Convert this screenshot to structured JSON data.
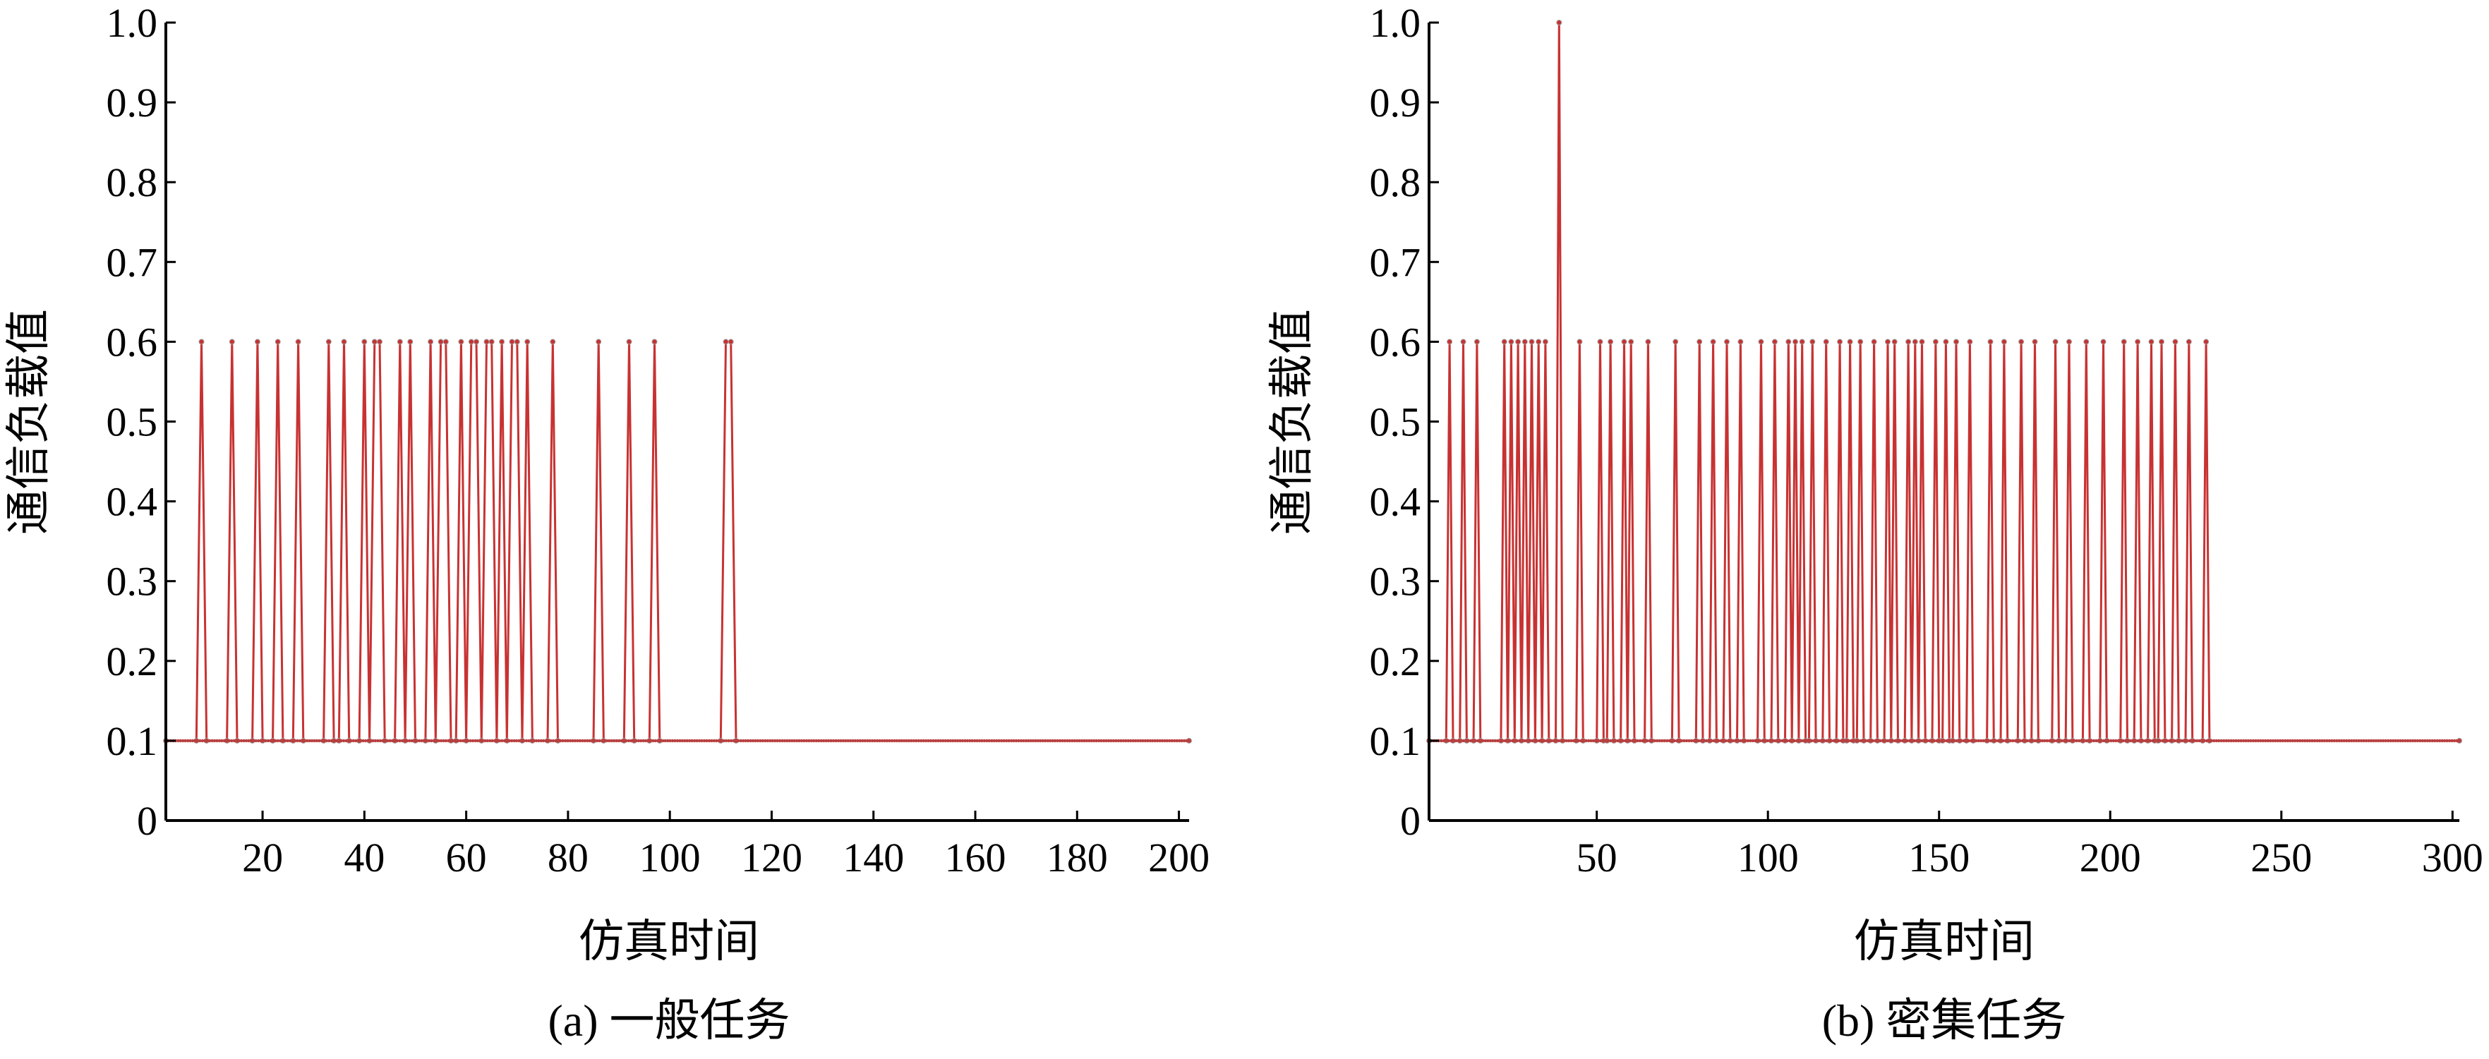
{
  "chart_data": [
    {
      "type": "line",
      "caption": "(a) 一般任务",
      "xlabel": "仿真时间",
      "ylabel": "通信负载值",
      "xlim": [
        1,
        202
      ],
      "ylim": [
        0,
        1.0
      ],
      "xticks": [
        20,
        40,
        60,
        80,
        100,
        120,
        140,
        160,
        180,
        200
      ],
      "yticks": [
        0,
        0.1,
        0.2,
        0.3,
        0.4,
        0.5,
        0.6,
        0.7,
        0.8,
        0.9,
        1.0
      ],
      "ytick_labels": [
        "0",
        "0.1",
        "0.2",
        "0.3",
        "0.4",
        "0.5",
        "0.6",
        "0.7",
        "0.8",
        "0.9",
        "1.0"
      ],
      "grid": false,
      "baseline": 0.1,
      "peak_value": 0.6,
      "series": [
        {
          "color": "#c83232",
          "peaks": [
            8,
            14,
            19,
            23,
            27,
            33,
            36,
            40,
            42,
            43,
            47,
            49,
            53,
            55,
            56,
            59,
            61,
            62,
            64,
            65,
            67,
            69,
            70,
            72,
            77,
            86,
            92,
            97,
            111,
            112
          ],
          "points": [
            [
              1,
              0.1
            ],
            [
              7,
              0.1
            ],
            [
              8,
              0.6
            ],
            [
              9,
              0.1
            ],
            [
              13,
              0.1
            ],
            [
              14,
              0.6
            ],
            [
              15,
              0.1
            ],
            [
              18,
              0.1
            ],
            [
              19,
              0.6
            ],
            [
              20,
              0.1
            ],
            [
              22,
              0.1
            ],
            [
              23,
              0.6
            ],
            [
              24,
              0.1
            ],
            [
              26,
              0.1
            ],
            [
              27,
              0.6
            ],
            [
              28,
              0.1
            ],
            [
              32,
              0.1
            ],
            [
              33,
              0.6
            ],
            [
              34,
              0.1
            ],
            [
              35,
              0.1
            ],
            [
              36,
              0.6
            ],
            [
              37,
              0.1
            ],
            [
              39,
              0.1
            ],
            [
              40,
              0.6
            ],
            [
              41,
              0.1
            ],
            [
              42,
              0.6
            ],
            [
              43,
              0.6
            ],
            [
              44,
              0.1
            ],
            [
              46,
              0.1
            ],
            [
              47,
              0.6
            ],
            [
              48,
              0.1
            ],
            [
              49,
              0.6
            ],
            [
              50,
              0.1
            ],
            [
              52,
              0.1
            ],
            [
              53,
              0.6
            ],
            [
              54,
              0.1
            ],
            [
              55,
              0.6
            ],
            [
              56,
              0.6
            ],
            [
              57,
              0.1
            ],
            [
              58,
              0.1
            ],
            [
              59,
              0.6
            ],
            [
              60,
              0.1
            ],
            [
              61,
              0.6
            ],
            [
              62,
              0.6
            ],
            [
              63,
              0.1
            ],
            [
              64,
              0.6
            ],
            [
              65,
              0.6
            ],
            [
              66,
              0.1
            ],
            [
              67,
              0.6
            ],
            [
              68,
              0.1
            ],
            [
              69,
              0.6
            ],
            [
              70,
              0.6
            ],
            [
              71,
              0.1
            ],
            [
              72,
              0.6
            ],
            [
              73,
              0.1
            ],
            [
              76,
              0.1
            ],
            [
              77,
              0.6
            ],
            [
              78,
              0.1
            ],
            [
              85,
              0.1
            ],
            [
              86,
              0.6
            ],
            [
              87,
              0.1
            ],
            [
              91,
              0.1
            ],
            [
              92,
              0.6
            ],
            [
              93,
              0.1
            ],
            [
              96,
              0.1
            ],
            [
              97,
              0.6
            ],
            [
              98,
              0.1
            ],
            [
              110,
              0.1
            ],
            [
              111,
              0.6
            ],
            [
              112,
              0.6
            ],
            [
              113,
              0.1
            ],
            [
              202,
              0.1
            ]
          ]
        }
      ]
    },
    {
      "type": "line",
      "caption": "(b)  密集任务",
      "xlabel": "仿真时间",
      "ylabel": "通信负载值",
      "xlim": [
        1,
        302
      ],
      "ylim": [
        0,
        1.0
      ],
      "xticks": [
        50,
        100,
        150,
        200,
        250,
        300
      ],
      "yticks": [
        0,
        0.1,
        0.2,
        0.3,
        0.4,
        0.5,
        0.6,
        0.7,
        0.8,
        0.9,
        1.0
      ],
      "ytick_labels": [
        "0",
        "0.1",
        "0.2",
        "0.3",
        "0.4",
        "0.5",
        "0.6",
        "0.7",
        "0.8",
        "0.9",
        "1.0"
      ],
      "grid": false,
      "baseline": 0.1,
      "peak_value": 0.6,
      "series": [
        {
          "color": "#c83232",
          "peaks": [
            7,
            11,
            15,
            23,
            25,
            27,
            29,
            31,
            33,
            35,
            45,
            51,
            54,
            58,
            60,
            65,
            73,
            80,
            84,
            88,
            92,
            98,
            102,
            106,
            108,
            110,
            113,
            117,
            121,
            124,
            127,
            131,
            135,
            137,
            141,
            143,
            145,
            149,
            152,
            155,
            159,
            165,
            169,
            174,
            178,
            184,
            188,
            193,
            198,
            204,
            208,
            212,
            215,
            219,
            223,
            228
          ],
          "spikes": [
            [
              39,
              1.0
            ]
          ],
          "points": [
            [
              1,
              0.1
            ],
            [
              6,
              0.1
            ],
            [
              7,
              0.6
            ],
            [
              8,
              0.1
            ],
            [
              10,
              0.1
            ],
            [
              11,
              0.6
            ],
            [
              12,
              0.1
            ],
            [
              14,
              0.1
            ],
            [
              15,
              0.6
            ],
            [
              16,
              0.1
            ],
            [
              22,
              0.1
            ],
            [
              23,
              0.6
            ],
            [
              24,
              0.1
            ],
            [
              25,
              0.6
            ],
            [
              26,
              0.1
            ],
            [
              27,
              0.6
            ],
            [
              28,
              0.1
            ],
            [
              29,
              0.6
            ],
            [
              30,
              0.1
            ],
            [
              31,
              0.6
            ],
            [
              32,
              0.1
            ],
            [
              33,
              0.6
            ],
            [
              34,
              0.1
            ],
            [
              35,
              0.6
            ],
            [
              36,
              0.1
            ],
            [
              38,
              0.1
            ],
            [
              39,
              1.0
            ],
            [
              40,
              0.1
            ],
            [
              44,
              0.1
            ],
            [
              45,
              0.6
            ],
            [
              46,
              0.1
            ],
            [
              50,
              0.1
            ],
            [
              51,
              0.6
            ],
            [
              52,
              0.1
            ],
            [
              53,
              0.1
            ],
            [
              54,
              0.6
            ],
            [
              55,
              0.1
            ],
            [
              57,
              0.1
            ],
            [
              58,
              0.6
            ],
            [
              59,
              0.1
            ],
            [
              60,
              0.6
            ],
            [
              61,
              0.1
            ],
            [
              64,
              0.1
            ],
            [
              65,
              0.6
            ],
            [
              66,
              0.1
            ],
            [
              72,
              0.1
            ],
            [
              73,
              0.6
            ],
            [
              74,
              0.1
            ],
            [
              79,
              0.1
            ],
            [
              80,
              0.6
            ],
            [
              81,
              0.1
            ],
            [
              83,
              0.1
            ],
            [
              84,
              0.6
            ],
            [
              85,
              0.1
            ],
            [
              87,
              0.1
            ],
            [
              88,
              0.6
            ],
            [
              89,
              0.1
            ],
            [
              91,
              0.1
            ],
            [
              92,
              0.6
            ],
            [
              93,
              0.1
            ],
            [
              97,
              0.1
            ],
            [
              98,
              0.6
            ],
            [
              99,
              0.1
            ],
            [
              101,
              0.1
            ],
            [
              102,
              0.6
            ],
            [
              103,
              0.1
            ],
            [
              105,
              0.1
            ],
            [
              106,
              0.6
            ],
            [
              107,
              0.1
            ],
            [
              108,
              0.6
            ],
            [
              109,
              0.1
            ],
            [
              110,
              0.6
            ],
            [
              111,
              0.1
            ],
            [
              112,
              0.1
            ],
            [
              113,
              0.6
            ],
            [
              114,
              0.1
            ],
            [
              116,
              0.1
            ],
            [
              117,
              0.6
            ],
            [
              118,
              0.1
            ],
            [
              120,
              0.1
            ],
            [
              121,
              0.6
            ],
            [
              122,
              0.1
            ],
            [
              123,
              0.1
            ],
            [
              124,
              0.6
            ],
            [
              125,
              0.1
            ],
            [
              126,
              0.1
            ],
            [
              127,
              0.6
            ],
            [
              128,
              0.1
            ],
            [
              130,
              0.1
            ],
            [
              131,
              0.6
            ],
            [
              132,
              0.1
            ],
            [
              134,
              0.1
            ],
            [
              135,
              0.6
            ],
            [
              136,
              0.1
            ],
            [
              137,
              0.6
            ],
            [
              138,
              0.1
            ],
            [
              140,
              0.1
            ],
            [
              141,
              0.6
            ],
            [
              142,
              0.1
            ],
            [
              143,
              0.6
            ],
            [
              144,
              0.1
            ],
            [
              145,
              0.6
            ],
            [
              146,
              0.1
            ],
            [
              148,
              0.1
            ],
            [
              149,
              0.6
            ],
            [
              150,
              0.1
            ],
            [
              151,
              0.1
            ],
            [
              152,
              0.6
            ],
            [
              153,
              0.1
            ],
            [
              154,
              0.1
            ],
            [
              155,
              0.6
            ],
            [
              156,
              0.1
            ],
            [
              158,
              0.1
            ],
            [
              159,
              0.6
            ],
            [
              160,
              0.1
            ],
            [
              164,
              0.1
            ],
            [
              165,
              0.6
            ],
            [
              166,
              0.1
            ],
            [
              168,
              0.1
            ],
            [
              169,
              0.6
            ],
            [
              170,
              0.1
            ],
            [
              173,
              0.1
            ],
            [
              174,
              0.6
            ],
            [
              175,
              0.1
            ],
            [
              177,
              0.1
            ],
            [
              178,
              0.6
            ],
            [
              179,
              0.1
            ],
            [
              183,
              0.1
            ],
            [
              184,
              0.6
            ],
            [
              185,
              0.1
            ],
            [
              187,
              0.1
            ],
            [
              188,
              0.6
            ],
            [
              189,
              0.1
            ],
            [
              192,
              0.1
            ],
            [
              193,
              0.6
            ],
            [
              194,
              0.1
            ],
            [
              197,
              0.1
            ],
            [
              198,
              0.6
            ],
            [
              199,
              0.1
            ],
            [
              203,
              0.1
            ],
            [
              204,
              0.6
            ],
            [
              205,
              0.1
            ],
            [
              207,
              0.1
            ],
            [
              208,
              0.6
            ],
            [
              209,
              0.1
            ],
            [
              211,
              0.1
            ],
            [
              212,
              0.6
            ],
            [
              213,
              0.1
            ],
            [
              214,
              0.1
            ],
            [
              215,
              0.6
            ],
            [
              216,
              0.1
            ],
            [
              218,
              0.1
            ],
            [
              219,
              0.6
            ],
            [
              220,
              0.1
            ],
            [
              222,
              0.1
            ],
            [
              223,
              0.6
            ],
            [
              224,
              0.1
            ],
            [
              227,
              0.1
            ],
            [
              228,
              0.6
            ],
            [
              229,
              0.1
            ],
            [
              302,
              0.1
            ]
          ]
        }
      ]
    }
  ]
}
